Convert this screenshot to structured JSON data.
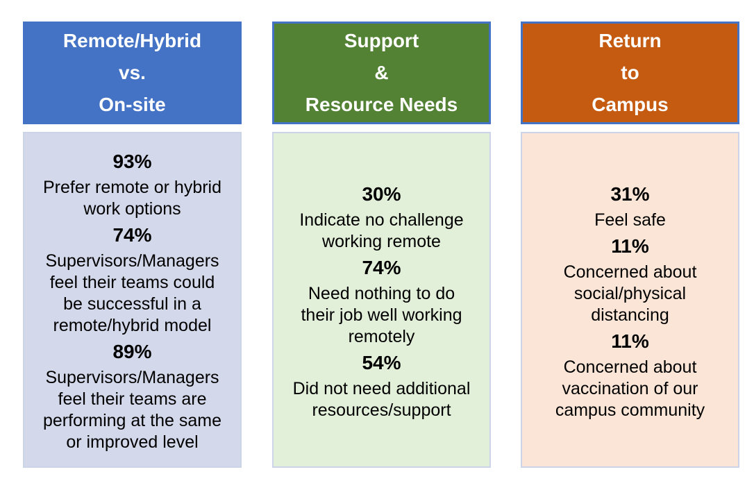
{
  "slide": {
    "background_color": "#FFFFFF",
    "text_color": "#000000",
    "header_border_color": "#4472C4",
    "body_border_color": "#CCD4E8"
  },
  "columns": [
    {
      "name": "Remote/Hybrid vs. On-site",
      "header_color": "#4472C4",
      "body_color": "#D3D8EA",
      "title_lines": [
        "Remote/Hybrid",
        "vs.",
        "On-site"
      ],
      "stats": [
        {
          "value": "93%",
          "desc": "Prefer remote or hybrid work options"
        },
        {
          "value": "74%",
          "desc": "Supervisors/Managers feel their teams could be successful in a remote/hybrid model"
        },
        {
          "value": "89%",
          "desc": "Supervisors/Managers feel their teams are performing at the same or improved level"
        }
      ]
    },
    {
      "name": "Support & Resource Needs",
      "header_color": "#548235",
      "body_color": "#E2EFD9",
      "title_lines": [
        "Support",
        "&",
        "Resource Needs"
      ],
      "stats": [
        {
          "value": "30%",
          "desc": "Indicate no challenge working remote"
        },
        {
          "value": "74%",
          "desc": "Need nothing to do their job well working remotely"
        },
        {
          "value": "54%",
          "desc": "Did not need additional resources/support"
        }
      ]
    },
    {
      "name": "Return to Campus",
      "header_color": "#C55A11",
      "body_color": "#FBE5D6",
      "title_lines": [
        "Return",
        "to",
        "Campus"
      ],
      "stats": [
        {
          "value": "31%",
          "desc": "Feel safe"
        },
        {
          "value": "11%",
          "desc": "Concerned about social/physical distancing"
        },
        {
          "value": "11%",
          "desc": "Concerned about vaccination of our campus community"
        }
      ]
    }
  ],
  "chart_data": {
    "type": "table",
    "title": "",
    "series": [
      {
        "name": "Remote/Hybrid vs. On-site",
        "categories": [
          "Prefer remote or hybrid work options",
          "Supervisors/Managers feel their teams could be successful in a remote/hybrid model",
          "Supervisors/Managers feel their teams are performing at the same or improved level"
        ],
        "values": [
          93,
          74,
          89
        ]
      },
      {
        "name": "Support & Resource Needs",
        "categories": [
          "Indicate no challenge working remote",
          "Need nothing to do their job well working remotely",
          "Did not need additional resources/support"
        ],
        "values": [
          30,
          74,
          54
        ]
      },
      {
        "name": "Return to Campus",
        "categories": [
          "Feel safe",
          "Concerned about social/physical distancing",
          "Concerned about vaccination of our campus community"
        ],
        "values": [
          31,
          11,
          11
        ]
      }
    ],
    "unit": "percent",
    "legend_position": "none",
    "grid": false
  }
}
